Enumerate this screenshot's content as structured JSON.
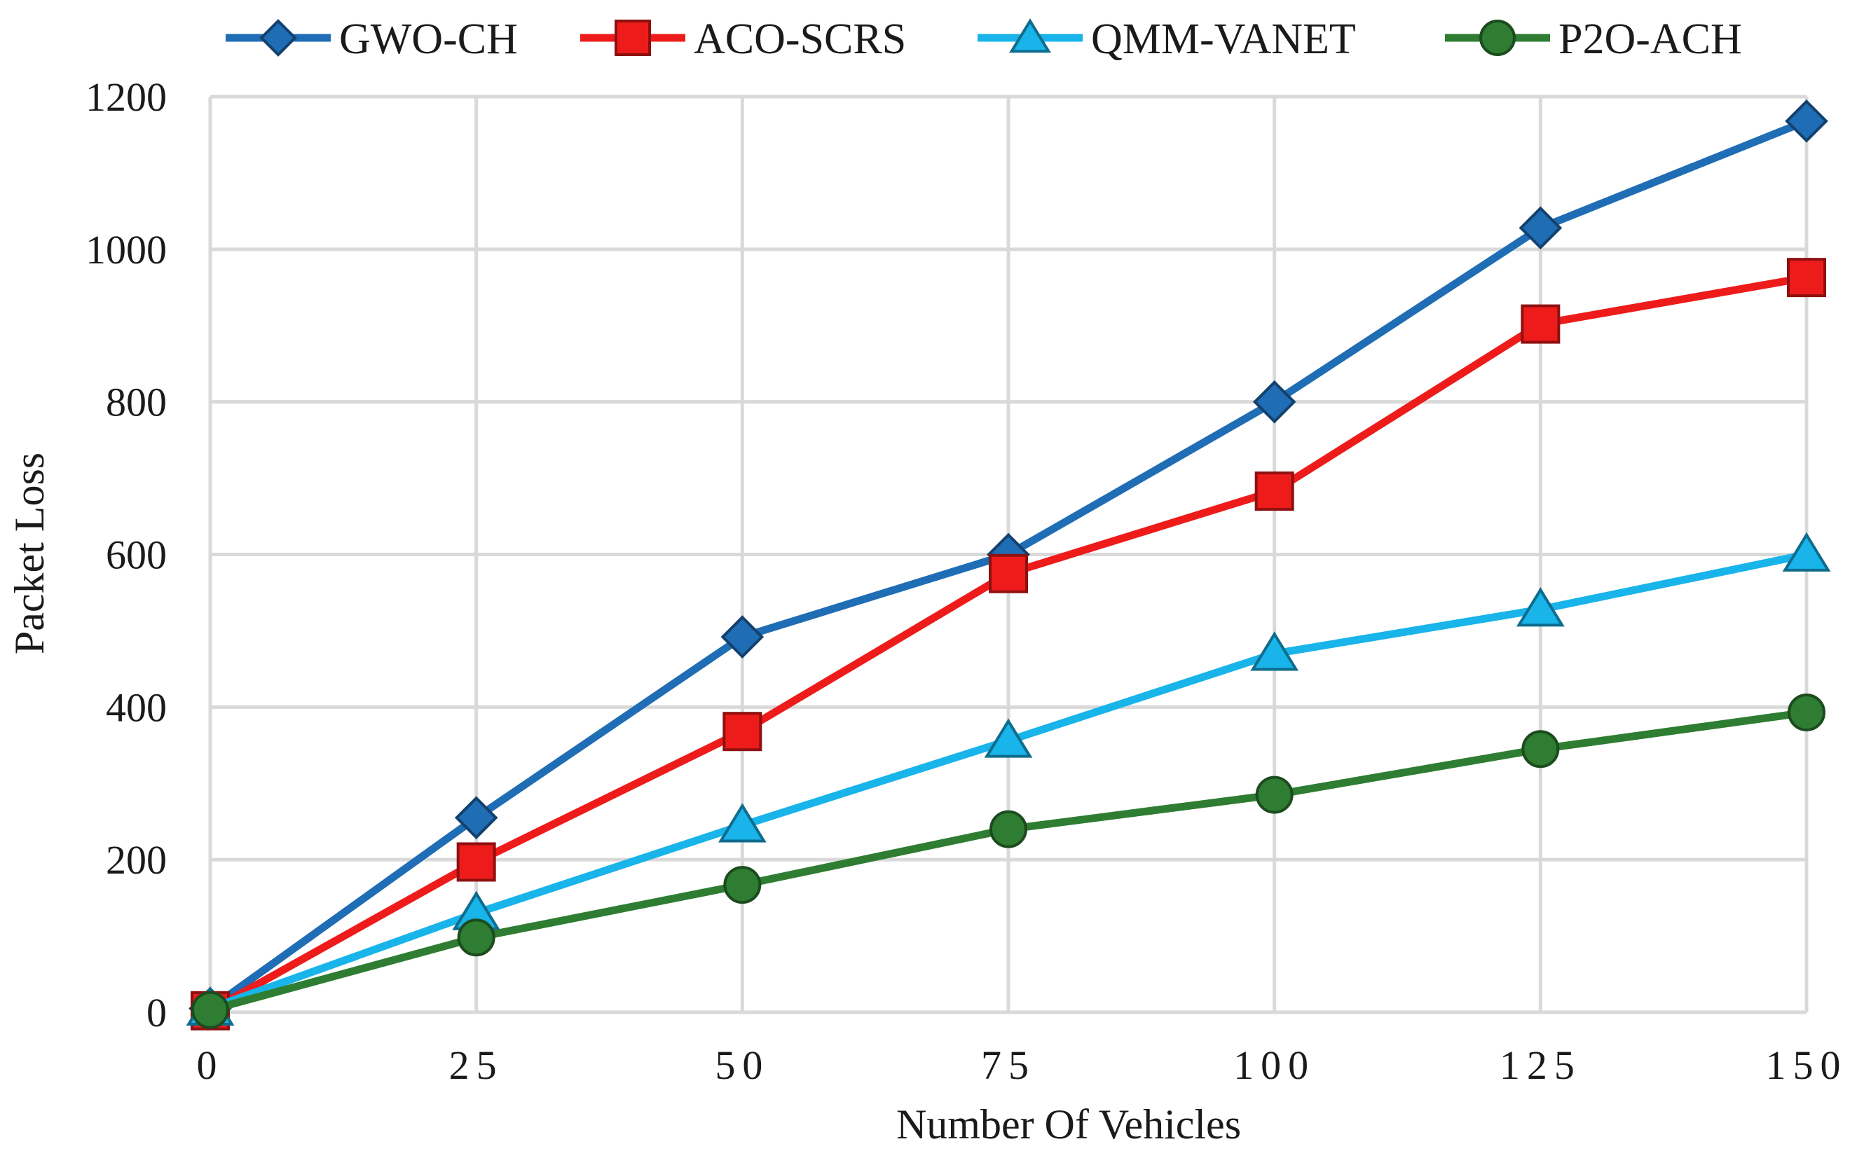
{
  "chart_data": {
    "type": "line",
    "title": "",
    "xlabel": "Number Of Vehicles",
    "ylabel": "Packet Loss",
    "x": [
      0,
      25,
      50,
      75,
      100,
      125,
      150
    ],
    "x_tick_labels": [
      "0",
      "25",
      "50",
      "75",
      "100",
      "125",
      "150"
    ],
    "y_ticks": [
      0,
      200,
      400,
      600,
      800,
      1000,
      1200
    ],
    "y_tick_labels": [
      "0",
      "200",
      "400",
      "600",
      "800",
      "1000",
      "1200"
    ],
    "xlim": [
      0,
      150
    ],
    "ylim": [
      0,
      1200
    ],
    "grid": true,
    "legend_position": "top",
    "series": [
      {
        "name": "GWO-CH",
        "marker": "diamond",
        "color": "#1f6db5",
        "values": [
          5,
          255,
          492,
          600,
          800,
          1028,
          1168
        ]
      },
      {
        "name": "ACO-SCRS",
        "marker": "square",
        "color": "#ee1b1b",
        "values": [
          2,
          197,
          368,
          575,
          683,
          902,
          963
        ]
      },
      {
        "name": "QMM-VANET",
        "marker": "triangle",
        "color": "#18b4ea",
        "values": [
          5,
          130,
          245,
          356,
          470,
          528,
          600
        ]
      },
      {
        "name": "P2O-ACH",
        "marker": "circle",
        "color": "#2e7d32",
        "values": [
          3,
          98,
          167,
          240,
          285,
          345,
          393
        ]
      }
    ]
  }
}
